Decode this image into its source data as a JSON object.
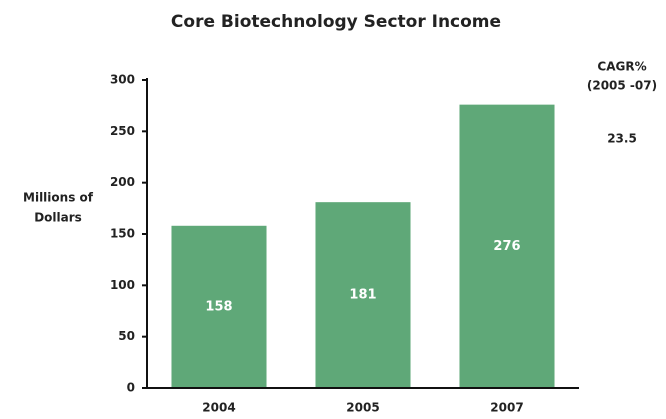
{
  "chart_data": {
    "type": "bar",
    "title": "Core Biotechnology Sector Income",
    "ylabel": [
      "Millions of",
      "Dollars"
    ],
    "annotations": [
      "CAGR%",
      "(2005 -07)",
      "23.5"
    ],
    "categories": [
      "2004",
      "2005",
      "2007"
    ],
    "values": [
      158,
      181,
      276
    ],
    "color": "#5fa878",
    "ylim": [
      0,
      300
    ],
    "yticks": [
      0,
      50,
      100,
      150,
      200,
      250,
      300
    ],
    "grid": false
  }
}
